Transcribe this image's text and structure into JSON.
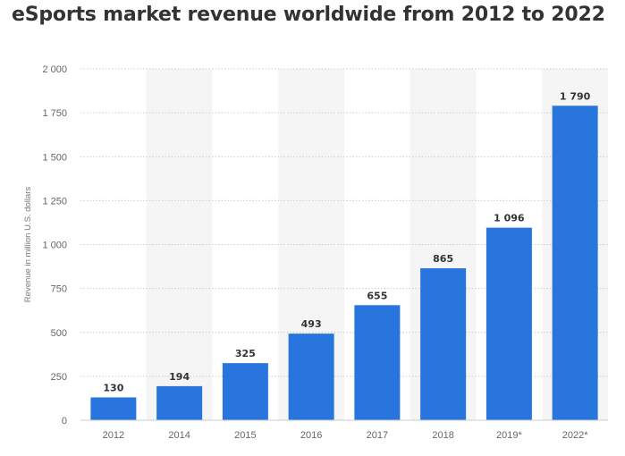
{
  "title": "eSports market revenue worldwide from 2012 to 2022",
  "chart_data": {
    "type": "bar",
    "title": "eSports market revenue worldwide from 2012 to 2022",
    "xlabel": "",
    "ylabel": "Revenue in million U.S. dollars",
    "categories": [
      "2012",
      "2014",
      "2015",
      "2016",
      "2017",
      "2018",
      "2019*",
      "2022*"
    ],
    "values": [
      130,
      194,
      325,
      493,
      655,
      865,
      1096,
      1790
    ],
    "value_labels": [
      "130",
      "194",
      "325",
      "493",
      "655",
      "865",
      "1 096",
      "1 790"
    ],
    "ylim": [
      0,
      2000
    ],
    "yticks": [
      0,
      250,
      500,
      750,
      1000,
      1250,
      1500,
      1750,
      2000
    ],
    "ytick_labels": [
      "0",
      "250",
      "500",
      "750",
      "1 000",
      "1 250",
      "1 500",
      "1 750",
      "2 000"
    ],
    "grid": true,
    "legend": "none",
    "colors": {
      "bar": "#2876dd",
      "band": "#f5f5f5",
      "grid": "#cccccc"
    }
  }
}
